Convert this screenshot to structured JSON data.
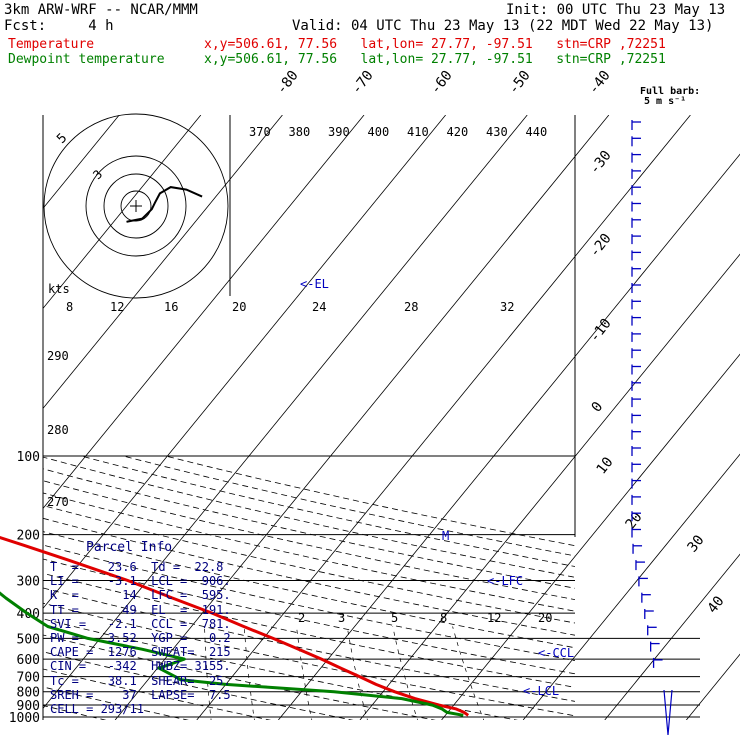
{
  "header": {
    "model": "3km ARW-WRF -- NCAR/MMM",
    "init": "Init: 00 UTC Thu 23 May 13",
    "fcst": "Fcst:     4 h",
    "valid": "Valid: 04 UTC Thu 23 May 13 (22 MDT Wed 22 May 13)",
    "series": [
      {
        "name": "Temperature",
        "info": "x,y=506.61, 77.56   lat,lon= 27.77, -97.51   stn=CRP ,72251",
        "color": "#e00000"
      },
      {
        "name": "Dewpoint temperature",
        "info": "x,y=506.61, 77.56   lat,lon= 27.77, -97.51   stn=CRP ,72251",
        "color": "#008000"
      }
    ]
  },
  "barb_legend": {
    "line1": "Full barb:",
    "line2": "5 m s⁻¹"
  },
  "hodograph": {
    "ring_labels": [
      "5",
      "3"
    ],
    "axis_unit": "kts",
    "axis_ticks": [
      "8",
      "12",
      "16",
      "20",
      "24",
      "28",
      "32"
    ]
  },
  "labels": {
    "el": "<-EL",
    "lfc": "<-LFC",
    "ccl": "<-CCL",
    "lcl": "<-LCL",
    "m": "M"
  },
  "mixing_ratio_labels": [
    "2",
    "3",
    "5",
    "8",
    "12",
    "20"
  ],
  "theta_labels": [
    "370",
    "380",
    "390",
    "400",
    "410",
    "420",
    "430",
    "440"
  ],
  "theta_labels_left": [
    "290",
    "280",
    "270"
  ],
  "isotherm_labels": [
    "-80",
    "-70",
    "-60",
    "-50",
    "-40",
    "-30",
    "-20",
    "-10",
    "0",
    "10",
    "20",
    "30",
    "40"
  ],
  "pressure_labels": [
    "100",
    "200",
    "300",
    "400",
    "500",
    "600",
    "700",
    "800",
    "900",
    "1000"
  ],
  "parcel_info": {
    "title": "Parcel Info",
    "rows": [
      "T  =    23.6  Td =  22.8",
      "LI =    -3.1  LCL =  906.",
      "K  =      14  LFC =  595.",
      "TT =      49  EL  =  191.",
      "SVI =   -2.1  CCL =  781.",
      "PW =    3.52  YGP =   0.2",
      "CAPE =  1276  SWEAT=  215",
      "CIN =   -342  HWBZ= 3155.",
      "Tc =    38.1  SHEAR=  25.",
      "SREH =    37  LAPSE=  7.5",
      "CELL = 293/11"
    ]
  },
  "chart_data": {
    "type": "line",
    "chart_kind": "skew-T log-P sounding",
    "y_axis": "pressure (hPa)",
    "y_scale": "log",
    "ylim": [
      1000,
      100
    ],
    "x_axis": "temperature (C), skewed",
    "series": [
      {
        "name": "Temperature",
        "color": "#e00000",
        "p": [
          985,
          960,
          930,
          900,
          850,
          800,
          750,
          700,
          650,
          600,
          550,
          500,
          450,
          400,
          350,
          300,
          250,
          220,
          200,
          180,
          160,
          140,
          120,
          100
        ],
        "t": [
          22.8,
          22,
          20.6,
          18.2,
          14.6,
          11.4,
          8.4,
          5.6,
          2.5,
          -0.8,
          -4.6,
          -8.8,
          -13.6,
          -18.8,
          -25.2,
          -32.4,
          -41.8,
          -48.6,
          -53.8,
          -58.8,
          -62.4,
          -65.6,
          -68.5,
          -72
        ]
      },
      {
        "name": "Dewpoint temperature",
        "color": "#008000",
        "p": [
          985,
          960,
          930,
          900,
          850,
          800,
          750,
          720,
          700,
          650,
          600,
          550,
          500,
          450,
          400,
          350,
          300,
          250,
          220,
          200,
          180,
          160,
          140,
          120,
          100
        ],
        "t": [
          22.2,
          19.9,
          18.9,
          17.4,
          13,
          4,
          -10,
          -16,
          -17,
          -19.8,
          -17.6,
          -23.8,
          -31.5,
          -37.6,
          -41.5,
          -45.6,
          -50,
          -60,
          -70,
          -71.5,
          -75.7,
          -79.5,
          -81.3,
          -83.2,
          -86.3
        ]
      }
    ],
    "hodograph": [
      [
        -1.5,
        2.5
      ],
      [
        1,
        2
      ],
      [
        2.5,
        0.5
      ],
      [
        3,
        -0.5
      ],
      [
        3.8,
        -2
      ],
      [
        5.5,
        -3
      ],
      [
        8,
        -2.6
      ],
      [
        10.5,
        -1.5
      ]
    ]
  }
}
